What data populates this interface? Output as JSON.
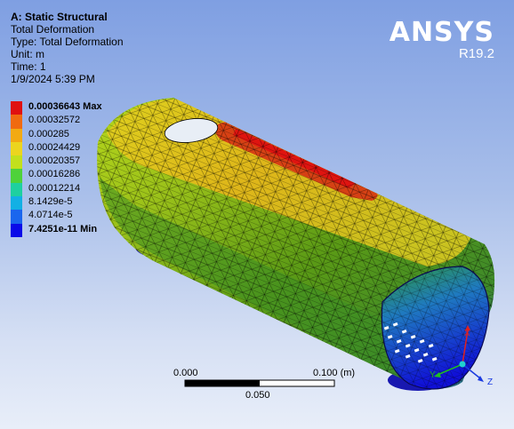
{
  "info": {
    "system": "A: Static Structural",
    "result": "Total Deformation",
    "type_line": "Type: Total Deformation",
    "unit_line": "Unit: m",
    "time_line": "Time: 1",
    "date_line": "1/9/2024 5:39 PM"
  },
  "brand": {
    "logo": "ANSYS",
    "version": "R19.2"
  },
  "legend": [
    {
      "label": "0.00036643 Max",
      "color": "#e01010",
      "bold": true
    },
    {
      "label": "0.00032572",
      "color": "#f06a10",
      "bold": false
    },
    {
      "label": "0.000285",
      "color": "#f2aa12",
      "bold": false
    },
    {
      "label": "0.00024429",
      "color": "#ecd51e",
      "bold": false
    },
    {
      "label": "0.00020357",
      "color": "#c2e01c",
      "bold": false
    },
    {
      "label": "0.00016286",
      "color": "#4ed23a",
      "bold": false
    },
    {
      "label": "0.00012214",
      "color": "#1ed0a0",
      "bold": false
    },
    {
      "label": "8.1429e-5",
      "color": "#12b0e4",
      "bold": false
    },
    {
      "label": "4.0714e-5",
      "color": "#1a66ee",
      "bold": false
    },
    {
      "label": "7.4251e-11 Min",
      "color": "#0a0ae8",
      "bold": true
    }
  ],
  "scale": {
    "left": "0.000",
    "right": "0.100 (m)",
    "mid": "0.050"
  },
  "triad": {
    "x": "X",
    "y": "Y",
    "z": "Z"
  }
}
